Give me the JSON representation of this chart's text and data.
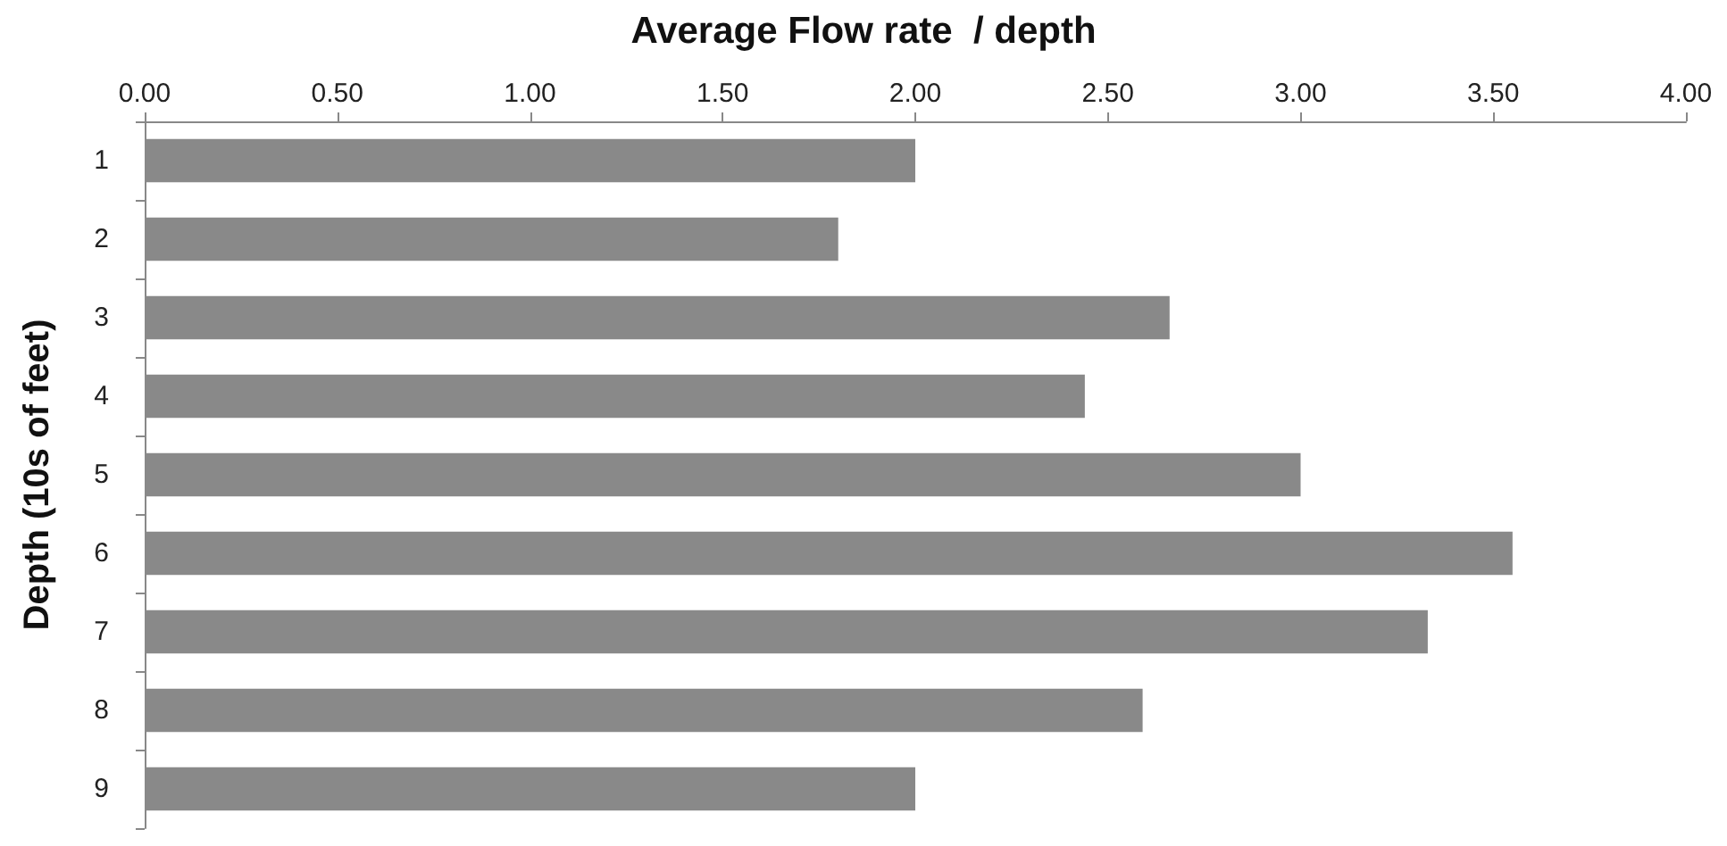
{
  "chart_data": {
    "type": "bar",
    "orientation": "horizontal",
    "title": "Average Flow rate  / depth",
    "ylabel": "Depth (10s of feet)",
    "categories": [
      "1",
      "2",
      "3",
      "4",
      "5",
      "6",
      "7",
      "8",
      "9"
    ],
    "values": [
      2.0,
      1.8,
      2.66,
      2.44,
      3.0,
      3.55,
      3.33,
      2.59,
      2.0
    ],
    "color": "#898989",
    "xlim": [
      0,
      4
    ],
    "xticks": [
      {
        "value": 0,
        "label": "0.00"
      },
      {
        "value": 0.5,
        "label": "0.50"
      },
      {
        "value": 1,
        "label": "1.00"
      },
      {
        "value": 1.5,
        "label": "1.50"
      },
      {
        "value": 2,
        "label": "2.00"
      },
      {
        "value": 2.5,
        "label": "2.50"
      },
      {
        "value": 3,
        "label": "3.00"
      },
      {
        "value": 3.5,
        "label": "3.50"
      },
      {
        "value": 4,
        "label": "4.00"
      }
    ],
    "grid": false
  }
}
